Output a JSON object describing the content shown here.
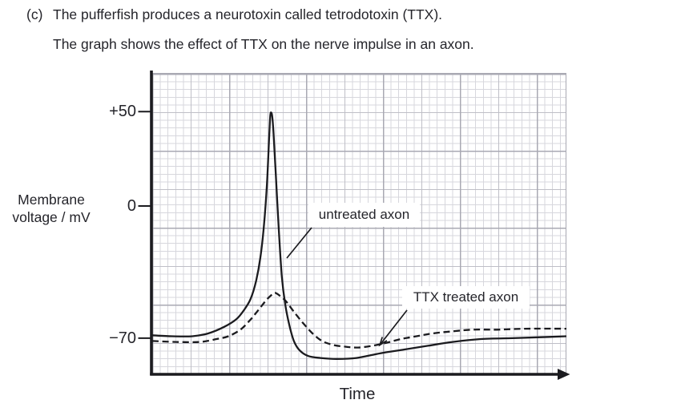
{
  "question": {
    "part_label": "(c)",
    "line1": "The pufferfish produces a neurotoxin called tetrodotoxin (TTX).",
    "line2": "The graph shows the effect of TTX on the nerve impulse in an axon."
  },
  "chart_data": {
    "type": "line",
    "title": "",
    "xlabel": "Time",
    "ylabel": "Membrane voltage / mV",
    "ylabel_lines": [
      "Membrane",
      "voltage / mV"
    ],
    "x_axis": {
      "label": "Time",
      "tick_labels": [],
      "note": "unlabeled arrow axis, x given as 0–100 relative time"
    },
    "y_ticks": [
      {
        "label": "+50",
        "value": 50
      },
      {
        "label": "0",
        "value": 0
      },
      {
        "label": "−70",
        "value": -70
      }
    ],
    "ylim": [
      -90,
      62
    ],
    "grid": "fine graph paper: minor, medium (5-cell) and major (10-cell) gridlines",
    "legend_position": "inline label boxes with leader lines",
    "series": [
      {
        "name": "untreated axon",
        "line_style": "solid",
        "points": [
          [
            0,
            -68.5
          ],
          [
            4.8,
            -69
          ],
          [
            9.7,
            -69
          ],
          [
            13.5,
            -67.5
          ],
          [
            17.4,
            -64
          ],
          [
            20.3,
            -60
          ],
          [
            22.2,
            -55
          ],
          [
            23.8,
            -49
          ],
          [
            25.1,
            -39.5
          ],
          [
            26.1,
            -27.5
          ],
          [
            26.9,
            -12
          ],
          [
            27.7,
            11.5
          ],
          [
            28.2,
            35
          ],
          [
            28.5,
            47.5
          ],
          [
            28.75,
            49.5
          ],
          [
            29.0,
            47
          ],
          [
            29.3,
            38
          ],
          [
            29.8,
            18
          ],
          [
            30.6,
            -14
          ],
          [
            31.3,
            -37.5
          ],
          [
            32.1,
            -52
          ],
          [
            33.1,
            -63
          ],
          [
            34.2,
            -71.5
          ],
          [
            35.6,
            -76.5
          ],
          [
            37.7,
            -79.5
          ],
          [
            40.6,
            -80.5
          ],
          [
            44.5,
            -81
          ],
          [
            49.3,
            -80.5
          ],
          [
            55.1,
            -78
          ],
          [
            60.9,
            -76
          ],
          [
            66.7,
            -74
          ],
          [
            72.5,
            -72
          ],
          [
            79.3,
            -70.5
          ],
          [
            87,
            -70
          ],
          [
            93.8,
            -69.5
          ],
          [
            100,
            -69
          ]
        ]
      },
      {
        "name": "TTX treated axon",
        "line_style": "dashed",
        "points": [
          [
            0,
            -71.5
          ],
          [
            5.8,
            -72
          ],
          [
            11.6,
            -72
          ],
          [
            15.5,
            -70.5
          ],
          [
            18.4,
            -69
          ],
          [
            21.3,
            -65.5
          ],
          [
            23.6,
            -60.5
          ],
          [
            25.5,
            -55.5
          ],
          [
            27.3,
            -50.5
          ],
          [
            28.6,
            -47.5
          ],
          [
            29.6,
            -46
          ],
          [
            30.8,
            -47.5
          ],
          [
            32.3,
            -50.5
          ],
          [
            34.2,
            -56
          ],
          [
            36.4,
            -62
          ],
          [
            38.7,
            -67.5
          ],
          [
            41,
            -71.5
          ],
          [
            43.5,
            -73.5
          ],
          [
            46.4,
            -74.5
          ],
          [
            49.7,
            -75
          ],
          [
            53.2,
            -74
          ],
          [
            56.5,
            -72.5
          ],
          [
            60,
            -70.5
          ],
          [
            63.8,
            -69
          ],
          [
            67.7,
            -67.5
          ],
          [
            72,
            -66.5
          ],
          [
            77.4,
            -65.5
          ],
          [
            83.2,
            -65.5
          ],
          [
            90,
            -65
          ],
          [
            100,
            -65
          ]
        ]
      }
    ],
    "annotations": [
      {
        "text": "untreated axon",
        "points_to": "solid curve, repolarisation phase of spike"
      },
      {
        "text": "TTX treated axon",
        "points_to": "dashed curve, recovery after small hump"
      }
    ]
  },
  "colors": {
    "text": "#25252b",
    "curve": "#1b1b1f",
    "axis": "#1b1b1f",
    "grid_minor": "#d7d7dd",
    "grid_medium": "#bfbfc7",
    "grid_major": "#a9a9b3",
    "label_box_bg": "#ffffff"
  }
}
